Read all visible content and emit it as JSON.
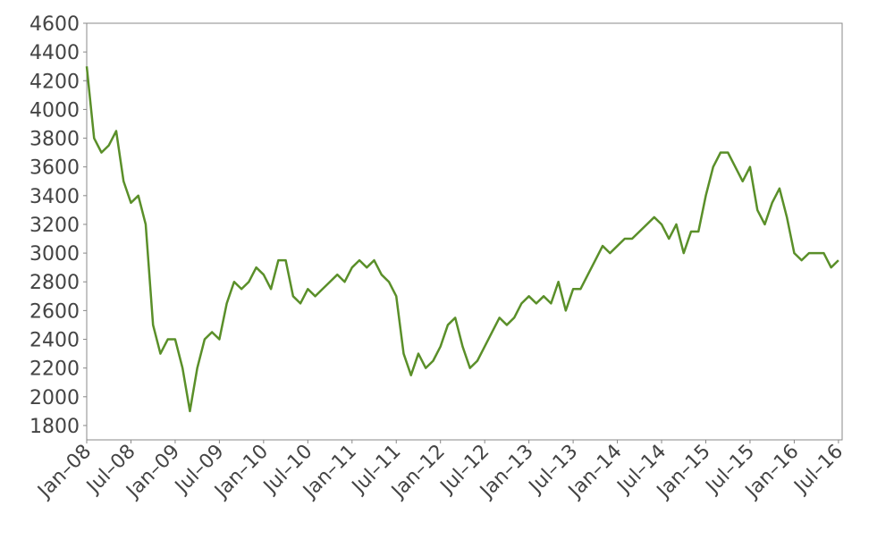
{
  "chart_data": {
    "type": "line",
    "x": [
      "2008-01",
      "2008-02",
      "2008-03",
      "2008-04",
      "2008-05",
      "2008-06",
      "2008-07",
      "2008-08",
      "2008-09",
      "2008-10",
      "2008-11",
      "2008-12",
      "2009-01",
      "2009-02",
      "2009-03",
      "2009-04",
      "2009-05",
      "2009-06",
      "2009-07",
      "2009-08",
      "2009-09",
      "2009-10",
      "2009-11",
      "2009-12",
      "2010-01",
      "2010-02",
      "2010-03",
      "2010-04",
      "2010-05",
      "2010-06",
      "2010-07",
      "2010-08",
      "2010-09",
      "2010-10",
      "2010-11",
      "2010-12",
      "2011-01",
      "2011-02",
      "2011-03",
      "2011-04",
      "2011-05",
      "2011-06",
      "2011-07",
      "2011-08",
      "2011-09",
      "2011-10",
      "2011-11",
      "2011-12",
      "2012-01",
      "2012-02",
      "2012-03",
      "2012-04",
      "2012-05",
      "2012-06",
      "2012-07",
      "2012-08",
      "2012-09",
      "2012-10",
      "2012-11",
      "2012-12",
      "2013-01",
      "2013-02",
      "2013-03",
      "2013-04",
      "2013-05",
      "2013-06",
      "2013-07",
      "2013-08",
      "2013-09",
      "2013-10",
      "2013-11",
      "2013-12",
      "2014-01",
      "2014-02",
      "2014-03",
      "2014-04",
      "2014-05",
      "2014-06",
      "2014-07",
      "2014-08",
      "2014-09",
      "2014-10",
      "2014-11",
      "2014-12",
      "2015-01",
      "2015-02",
      "2015-03",
      "2015-04",
      "2015-05",
      "2015-06",
      "2015-07",
      "2015-08",
      "2015-09",
      "2015-10",
      "2015-11",
      "2015-12",
      "2016-01",
      "2016-02",
      "2016-03",
      "2016-04",
      "2016-05",
      "2016-06",
      "2016-07"
    ],
    "series": [
      {
        "color": "#5a8f29",
        "values": [
          4300,
          3800,
          3700,
          3750,
          3850,
          3500,
          3350,
          3400,
          3200,
          2500,
          2300,
          2400,
          2400,
          2200,
          1900,
          2200,
          2400,
          2450,
          2400,
          2650,
          2800,
          2750,
          2800,
          2900,
          2850,
          2750,
          2950,
          2950,
          2700,
          2650,
          2750,
          2700,
          2750,
          2800,
          2850,
          2800,
          2900,
          2950,
          2900,
          2950,
          2850,
          2800,
          2700,
          2300,
          2150,
          2300,
          2200,
          2250,
          2350,
          2500,
          2550,
          2350,
          2200,
          2250,
          2350,
          2450,
          2550,
          2500,
          2550,
          2650,
          2700,
          2650,
          2700,
          2650,
          2800,
          2600,
          2750,
          2750,
          2850,
          2950,
          3050,
          3000,
          3050,
          3100,
          3100,
          3150,
          3200,
          3250,
          3200,
          3100,
          3200,
          3000,
          3150,
          3150,
          3400,
          3600,
          3700,
          3700,
          3600,
          3500,
          3600,
          3300,
          3200,
          3350,
          3450,
          3250,
          3000,
          2950,
          3000,
          3000,
          3000,
          2900,
          2950
        ]
      }
    ],
    "xlim": [
      "2008-01",
      "2016-07"
    ],
    "xticks": [
      {
        "value": "2008-01",
        "label": "Jan–08"
      },
      {
        "value": "2008-07",
        "label": "Jul–08"
      },
      {
        "value": "2009-01",
        "label": "Jan–09"
      },
      {
        "value": "2009-07",
        "label": "Jul–09"
      },
      {
        "value": "2010-01",
        "label": "Jan–10"
      },
      {
        "value": "2010-07",
        "label": "Jul–10"
      },
      {
        "value": "2011-01",
        "label": "Jan–11"
      },
      {
        "value": "2011-07",
        "label": "Jul–11"
      },
      {
        "value": "2012-01",
        "label": "Jan–12"
      },
      {
        "value": "2012-07",
        "label": "Jul–12"
      },
      {
        "value": "2013-01",
        "label": "Jan–13"
      },
      {
        "value": "2013-07",
        "label": "Jul–13"
      },
      {
        "value": "2014-01",
        "label": "Jan–14"
      },
      {
        "value": "2014-07",
        "label": "Jul–14"
      },
      {
        "value": "2015-01",
        "label": "Jan–15"
      },
      {
        "value": "2015-07",
        "label": "Jul–15"
      },
      {
        "value": "2016-01",
        "label": "Jan–16"
      },
      {
        "value": "2016-07",
        "label": "Jul–16"
      }
    ],
    "ylim": [
      1700,
      4600
    ],
    "yticks": [
      1800,
      2000,
      2200,
      2400,
      2600,
      2800,
      3000,
      3200,
      3400,
      3600,
      3800,
      4000,
      4200,
      4400,
      4600
    ]
  }
}
